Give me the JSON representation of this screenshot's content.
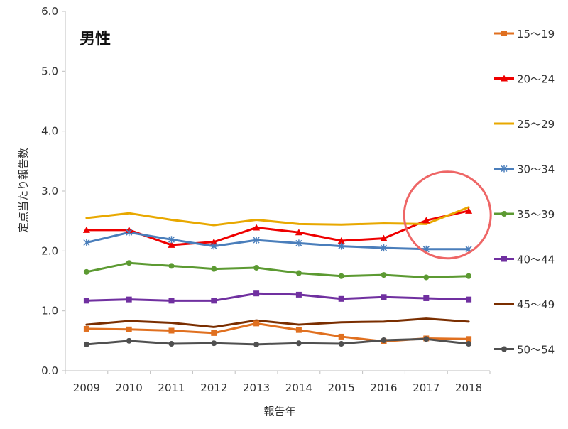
{
  "chart_data": {
    "type": "line",
    "title": "男性",
    "xlabel": "報告年",
    "ylabel": "定点当たり報告数",
    "x": [
      "2009",
      "2010",
      "2011",
      "2012",
      "2013",
      "2014",
      "2015",
      "2016",
      "2017",
      "2018"
    ],
    "ylim": [
      0,
      6
    ],
    "yticks": [
      "0.0",
      "1.0",
      "2.0",
      "3.0",
      "4.0",
      "5.0",
      "6.0"
    ],
    "grid": "none",
    "legend_position": "right",
    "series": [
      {
        "name": "15～19",
        "color": "#E07020",
        "marker": "square",
        "values": [
          0.7,
          0.69,
          0.67,
          0.63,
          0.79,
          0.68,
          0.57,
          0.49,
          0.54,
          0.53
        ]
      },
      {
        "name": "20～24",
        "color": "#EE0000",
        "marker": "triangle",
        "values": [
          2.35,
          2.35,
          2.1,
          2.15,
          2.39,
          2.31,
          2.17,
          2.21,
          2.51,
          2.67
        ]
      },
      {
        "name": "25～29",
        "color": "#E8A800",
        "marker": "none",
        "values": [
          2.55,
          2.63,
          2.52,
          2.43,
          2.52,
          2.45,
          2.44,
          2.46,
          2.45,
          2.73
        ]
      },
      {
        "name": "30～34",
        "color": "#4A7EBB",
        "marker": "star",
        "values": [
          2.14,
          2.31,
          2.19,
          2.08,
          2.18,
          2.13,
          2.08,
          2.05,
          2.03,
          2.03
        ]
      },
      {
        "name": "35～39",
        "color": "#5C9A32",
        "marker": "circle",
        "values": [
          1.65,
          1.8,
          1.75,
          1.7,
          1.72,
          1.63,
          1.58,
          1.6,
          1.56,
          1.58
        ]
      },
      {
        "name": "40～44",
        "color": "#7030A0",
        "marker": "square",
        "values": [
          1.17,
          1.19,
          1.17,
          1.17,
          1.29,
          1.27,
          1.2,
          1.23,
          1.21,
          1.19
        ]
      },
      {
        "name": "45～49",
        "color": "#7A2E00",
        "marker": "none",
        "values": [
          0.77,
          0.83,
          0.8,
          0.73,
          0.84,
          0.77,
          0.81,
          0.82,
          0.87,
          0.82
        ]
      },
      {
        "name": "50～54",
        "color": "#505050",
        "marker": "circle",
        "values": [
          0.44,
          0.5,
          0.45,
          0.46,
          0.44,
          0.46,
          0.45,
          0.51,
          0.53,
          0.45
        ]
      }
    ],
    "annotations": [
      {
        "type": "circle",
        "color": "#EE6666",
        "center_x": "2017.5",
        "center_y": 2.6
      }
    ]
  }
}
